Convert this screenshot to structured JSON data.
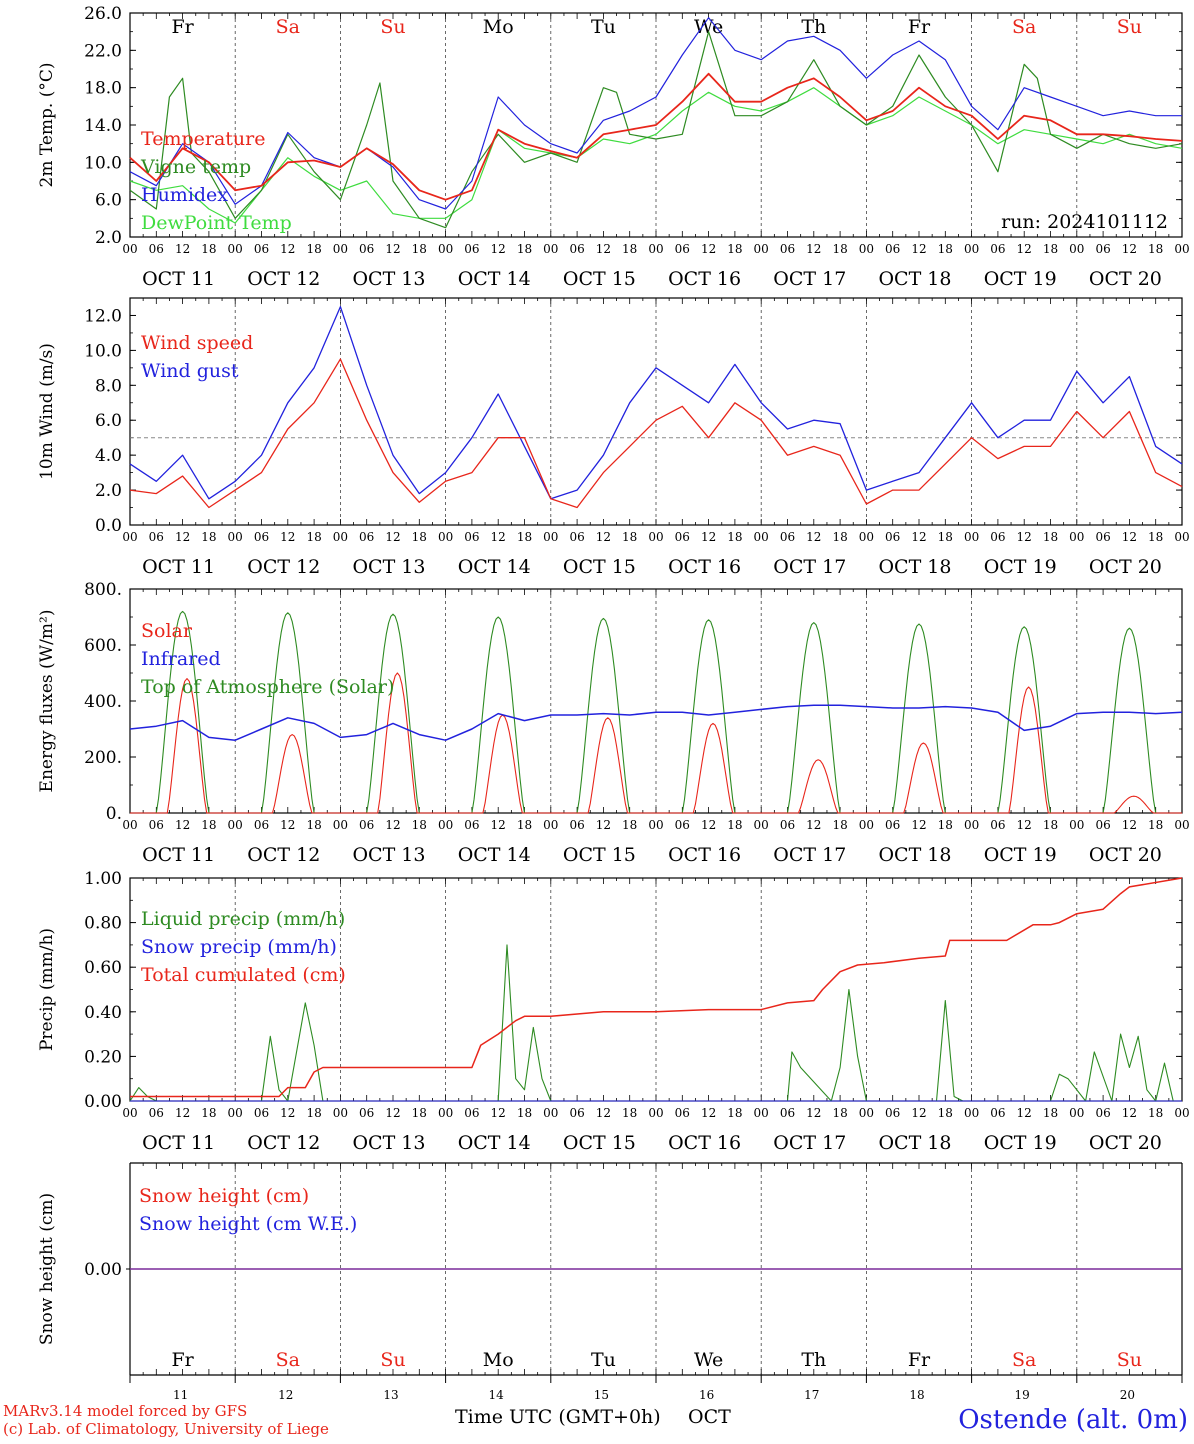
{
  "header": {
    "run_label": "run: 2024101112"
  },
  "days": [
    {
      "dow": "Fr",
      "date": "OCT 11",
      "num": "11",
      "weekend": false
    },
    {
      "dow": "Sa",
      "date": "OCT 12",
      "num": "12",
      "weekend": true
    },
    {
      "dow": "Su",
      "date": "OCT 13",
      "num": "13",
      "weekend": true
    },
    {
      "dow": "Mo",
      "date": "OCT 14",
      "num": "14",
      "weekend": false
    },
    {
      "dow": "Tu",
      "date": "OCT 15",
      "num": "15",
      "weekend": false
    },
    {
      "dow": "We",
      "date": "OCT 16",
      "num": "16",
      "weekend": false
    },
    {
      "dow": "Th",
      "date": "OCT 17",
      "num": "17",
      "weekend": false
    },
    {
      "dow": "Fr",
      "date": "OCT 18",
      "num": "18",
      "weekend": false
    },
    {
      "dow": "Sa",
      "date": "OCT 19",
      "num": "19",
      "weekend": true
    },
    {
      "dow": "Su",
      "date": "OCT 20",
      "num": "20",
      "weekend": true
    }
  ],
  "hour_ticks": [
    "00",
    "06",
    "12",
    "18"
  ],
  "hour_end": "00",
  "colors": {
    "red": "#e8261b",
    "green": "#2e8b22",
    "blue": "#2222dd",
    "light_green": "#3fdc3f",
    "purple": "#7a2a9a",
    "weekend": "#e8261b"
  },
  "footer": {
    "model": "MARv3.14 model forced by GFS",
    "copyright": "(c) Lab. of Climatology, University of Liege",
    "time_axis": "Time UTC (GMT+0h)",
    "month": "OCT",
    "station": "Ostende (alt. 0m)"
  },
  "chart_data": [
    {
      "type": "line",
      "ylabel": "2m Temp. (°C)",
      "ylim": [
        2,
        26
      ],
      "yticks": [
        "2.0",
        "6.0",
        "10.0",
        "14.0",
        "18.0",
        "22.0",
        "26.0"
      ],
      "x_unit": "hours since OCT 11 00 UTC",
      "series": [
        {
          "name": "Temperature",
          "color": "red",
          "x": [
            0,
            6,
            12,
            18,
            24,
            30,
            36,
            42,
            48,
            54,
            60,
            66,
            72,
            78,
            84,
            90,
            96,
            102,
            108,
            114,
            120,
            126,
            132,
            138,
            144,
            150,
            156,
            162,
            168,
            174,
            180,
            186,
            192,
            198,
            204,
            210,
            216,
            222,
            228,
            234,
            240
          ],
          "y": [
            10.5,
            8,
            11.5,
            10,
            7,
            7.5,
            10,
            10.2,
            9.5,
            11.5,
            9.8,
            7,
            6,
            7,
            13.5,
            12,
            11.2,
            10.5,
            13,
            13.5,
            14,
            16.5,
            19.5,
            16.5,
            16.5,
            18,
            19,
            17,
            14.5,
            15.5,
            18,
            16,
            15,
            12.5,
            15,
            14.5,
            13,
            13,
            12.8,
            12.5,
            12.3
          ]
        },
        {
          "name": "Vigne temp",
          "color": "green",
          "x": [
            0,
            6,
            9,
            12,
            14,
            18,
            24,
            30,
            36,
            42,
            48,
            54,
            57,
            60,
            66,
            72,
            78,
            84,
            90,
            96,
            102,
            108,
            111,
            114,
            120,
            126,
            132,
            138,
            144,
            150,
            156,
            162,
            168,
            174,
            180,
            186,
            192,
            198,
            204,
            207,
            210,
            216,
            222,
            228,
            234,
            240
          ],
          "y": [
            7,
            5,
            17,
            19,
            11,
            9,
            4,
            7,
            13,
            9,
            6,
            14,
            18.5,
            8,
            4,
            3,
            9,
            13,
            10,
            11,
            10,
            18,
            17.5,
            13,
            12.5,
            13,
            24,
            15,
            15,
            16.5,
            21,
            16,
            14,
            16,
            21.5,
            17,
            14,
            9,
            20.5,
            19,
            13,
            11.5,
            13,
            12,
            11.5,
            12
          ]
        },
        {
          "name": "Humidex",
          "color": "blue",
          "x": [
            0,
            6,
            12,
            18,
            24,
            30,
            36,
            42,
            48,
            54,
            60,
            66,
            72,
            78,
            84,
            90,
            96,
            102,
            108,
            114,
            120,
            126,
            132,
            138,
            144,
            150,
            156,
            162,
            168,
            174,
            180,
            186,
            192,
            198,
            204,
            210,
            216,
            222,
            228,
            234,
            240
          ],
          "y": [
            9,
            7.5,
            12,
            10,
            5.5,
            7.5,
            13.2,
            10.5,
            9.5,
            11.5,
            9.5,
            6,
            5,
            8,
            17,
            14,
            12,
            11,
            14.5,
            15.5,
            17,
            21.5,
            25.5,
            22,
            21,
            23,
            23.5,
            22,
            19,
            21.5,
            23,
            21,
            16,
            13.5,
            18,
            17,
            16,
            15,
            15.5,
            15,
            15
          ]
        },
        {
          "name": "DewPoint Temp",
          "color": "light_green",
          "x": [
            0,
            6,
            12,
            18,
            24,
            30,
            36,
            42,
            48,
            54,
            60,
            66,
            72,
            78,
            84,
            90,
            96,
            102,
            108,
            114,
            120,
            126,
            132,
            138,
            144,
            150,
            156,
            162,
            168,
            174,
            180,
            186,
            192,
            198,
            204,
            210,
            216,
            222,
            228,
            234,
            240
          ],
          "y": [
            8,
            7,
            7.5,
            5,
            3.5,
            7,
            10.5,
            8.5,
            7,
            8,
            4.5,
            4,
            4,
            6,
            13.5,
            11.5,
            11,
            10.5,
            12.5,
            12,
            13,
            15.5,
            17.5,
            16,
            15.5,
            16.5,
            18,
            16,
            14,
            15,
            17,
            15.5,
            14,
            12,
            13.5,
            13,
            12.5,
            12,
            13,
            12,
            11.5
          ]
        }
      ]
    },
    {
      "type": "line",
      "ylabel": "10m Wind (m/s)",
      "ylim": [
        0,
        13
      ],
      "yticks": [
        "0.0",
        "2.0",
        "4.0",
        "6.0",
        "8.0",
        "10.0",
        "12.0"
      ],
      "reference_line": 5,
      "series": [
        {
          "name": "Wind speed",
          "color": "red",
          "x": [
            0,
            6,
            12,
            18,
            24,
            30,
            36,
            42,
            48,
            54,
            60,
            66,
            72,
            78,
            84,
            90,
            96,
            102,
            108,
            114,
            120,
            126,
            132,
            138,
            144,
            150,
            156,
            162,
            168,
            174,
            180,
            186,
            192,
            198,
            204,
            210,
            216,
            222,
            228,
            234,
            240
          ],
          "y": [
            2,
            1.8,
            2.8,
            1,
            2,
            3,
            5.5,
            7,
            9.5,
            6,
            3,
            1.3,
            2.5,
            3,
            5,
            5,
            1.5,
            1,
            3,
            4.5,
            6,
            6.8,
            5,
            7,
            6,
            4,
            4.5,
            4,
            1.2,
            2,
            2,
            3.5,
            5,
            3.8,
            4.5,
            4.5,
            6.5,
            5,
            6.5,
            3,
            2.2
          ]
        },
        {
          "name": "Wind gust",
          "color": "blue",
          "x": [
            0,
            6,
            12,
            18,
            24,
            30,
            36,
            42,
            48,
            54,
            60,
            66,
            72,
            78,
            84,
            90,
            96,
            102,
            108,
            114,
            120,
            126,
            132,
            138,
            144,
            150,
            156,
            162,
            168,
            174,
            180,
            186,
            192,
            198,
            204,
            210,
            216,
            222,
            228,
            234,
            240
          ],
          "y": [
            3.5,
            2.5,
            4,
            1.5,
            2.5,
            4,
            7,
            9,
            12.5,
            8,
            4,
            1.8,
            3,
            5,
            7.5,
            4.5,
            1.5,
            2,
            4,
            7,
            9,
            8,
            7,
            9.2,
            7,
            5.5,
            6,
            5.8,
            2,
            2.5,
            3,
            5,
            7,
            5,
            6,
            6,
            8.8,
            7,
            8.5,
            4.5,
            3.5
          ]
        }
      ]
    },
    {
      "type": "line",
      "ylabel": "Energy fluxes (W/m²)",
      "ylim": [
        0,
        800
      ],
      "yticks": [
        "0.",
        "200.",
        "400.",
        "600.",
        "800."
      ],
      "series": [
        {
          "name": "Solar",
          "color": "red",
          "daily_peak_hour": 13,
          "peaks": [
            480,
            280,
            500,
            350,
            340,
            320,
            190,
            250,
            450,
            60
          ]
        },
        {
          "name": "Infrared",
          "color": "blue",
          "x": [
            0,
            6,
            12,
            18,
            24,
            30,
            36,
            42,
            48,
            54,
            60,
            66,
            72,
            78,
            84,
            90,
            96,
            102,
            108,
            114,
            120,
            126,
            132,
            138,
            144,
            150,
            156,
            162,
            168,
            174,
            180,
            186,
            192,
            198,
            204,
            210,
            216,
            222,
            228,
            234,
            240
          ],
          "y": [
            300,
            310,
            330,
            270,
            260,
            300,
            340,
            320,
            270,
            280,
            320,
            280,
            260,
            300,
            355,
            330,
            350,
            350,
            355,
            350,
            360,
            360,
            350,
            360,
            370,
            380,
            385,
            385,
            380,
            375,
            375,
            380,
            375,
            360,
            295,
            310,
            355,
            360,
            360,
            355,
            360
          ]
        },
        {
          "name": "Top of Atmosphere (Solar)",
          "color": "green",
          "daily_peak_hour": 12,
          "peaks": [
            720,
            715,
            710,
            700,
            695,
            690,
            680,
            675,
            665,
            660
          ]
        }
      ]
    },
    {
      "type": "line",
      "ylabel": "Precip (mm/h)",
      "ylim": [
        0,
        1
      ],
      "yticks": [
        "0.00",
        "0.20",
        "0.40",
        "0.60",
        "0.80",
        "1.00"
      ],
      "series": [
        {
          "name": "Liquid precip (mm/h)",
          "color": "green",
          "x": [
            0,
            2,
            4,
            6,
            30,
            32,
            34,
            36,
            40,
            42,
            44,
            46,
            48,
            84,
            86,
            88,
            90,
            92,
            94,
            96,
            100,
            150,
            151,
            153,
            160,
            162,
            164,
            166,
            168,
            184,
            186,
            188,
            190,
            192,
            194,
            196,
            210,
            212,
            214,
            218,
            220,
            224,
            226,
            228,
            230,
            232,
            234,
            236,
            238,
            240
          ],
          "y": [
            0,
            0.06,
            0.02,
            0,
            0,
            0.29,
            0.05,
            0,
            0.44,
            0.25,
            0,
            0,
            0,
            0,
            0.7,
            0.1,
            0.05,
            0.33,
            0.1,
            0,
            0,
            0,
            0.22,
            0.15,
            0,
            0.15,
            0.5,
            0.2,
            0,
            0,
            0.45,
            0.02,
            0,
            0,
            0,
            0,
            0,
            0.12,
            0.1,
            0,
            0.22,
            0,
            0.3,
            0.15,
            0.29,
            0.05,
            0,
            0.17,
            0,
            0
          ]
        },
        {
          "name": "Snow precip (mm/h)",
          "color": "blue",
          "x": [
            0,
            240
          ],
          "y": [
            0,
            0
          ]
        },
        {
          "name": "Total cumulated (cm)",
          "color": "red",
          "x": [
            0,
            34,
            36,
            40,
            42,
            44,
            72,
            78,
            80,
            84,
            88,
            90,
            96,
            108,
            120,
            132,
            144,
            150,
            156,
            158,
            162,
            166,
            172,
            180,
            186,
            187,
            192,
            198,
            200,
            206,
            210,
            212,
            216,
            222,
            226,
            228,
            240
          ],
          "y": [
            0.02,
            0.02,
            0.06,
            0.06,
            0.13,
            0.15,
            0.15,
            0.15,
            0.25,
            0.3,
            0.36,
            0.38,
            0.38,
            0.4,
            0.4,
            0.41,
            0.41,
            0.44,
            0.45,
            0.5,
            0.58,
            0.61,
            0.62,
            0.64,
            0.65,
            0.72,
            0.72,
            0.72,
            0.72,
            0.79,
            0.79,
            0.8,
            0.84,
            0.86,
            0.93,
            0.96,
            1.0
          ]
        }
      ]
    },
    {
      "type": "line",
      "ylabel": "Snow height (cm)",
      "yticks": [
        "0.00"
      ],
      "series": [
        {
          "name": "Snow height (cm)",
          "color": "red",
          "x": [
            0,
            240
          ],
          "y": [
            0,
            0
          ]
        },
        {
          "name": "Snow height (cm W.E.)",
          "color": "blue",
          "x": [
            0,
            240
          ],
          "y": [
            0,
            0
          ]
        }
      ]
    }
  ]
}
